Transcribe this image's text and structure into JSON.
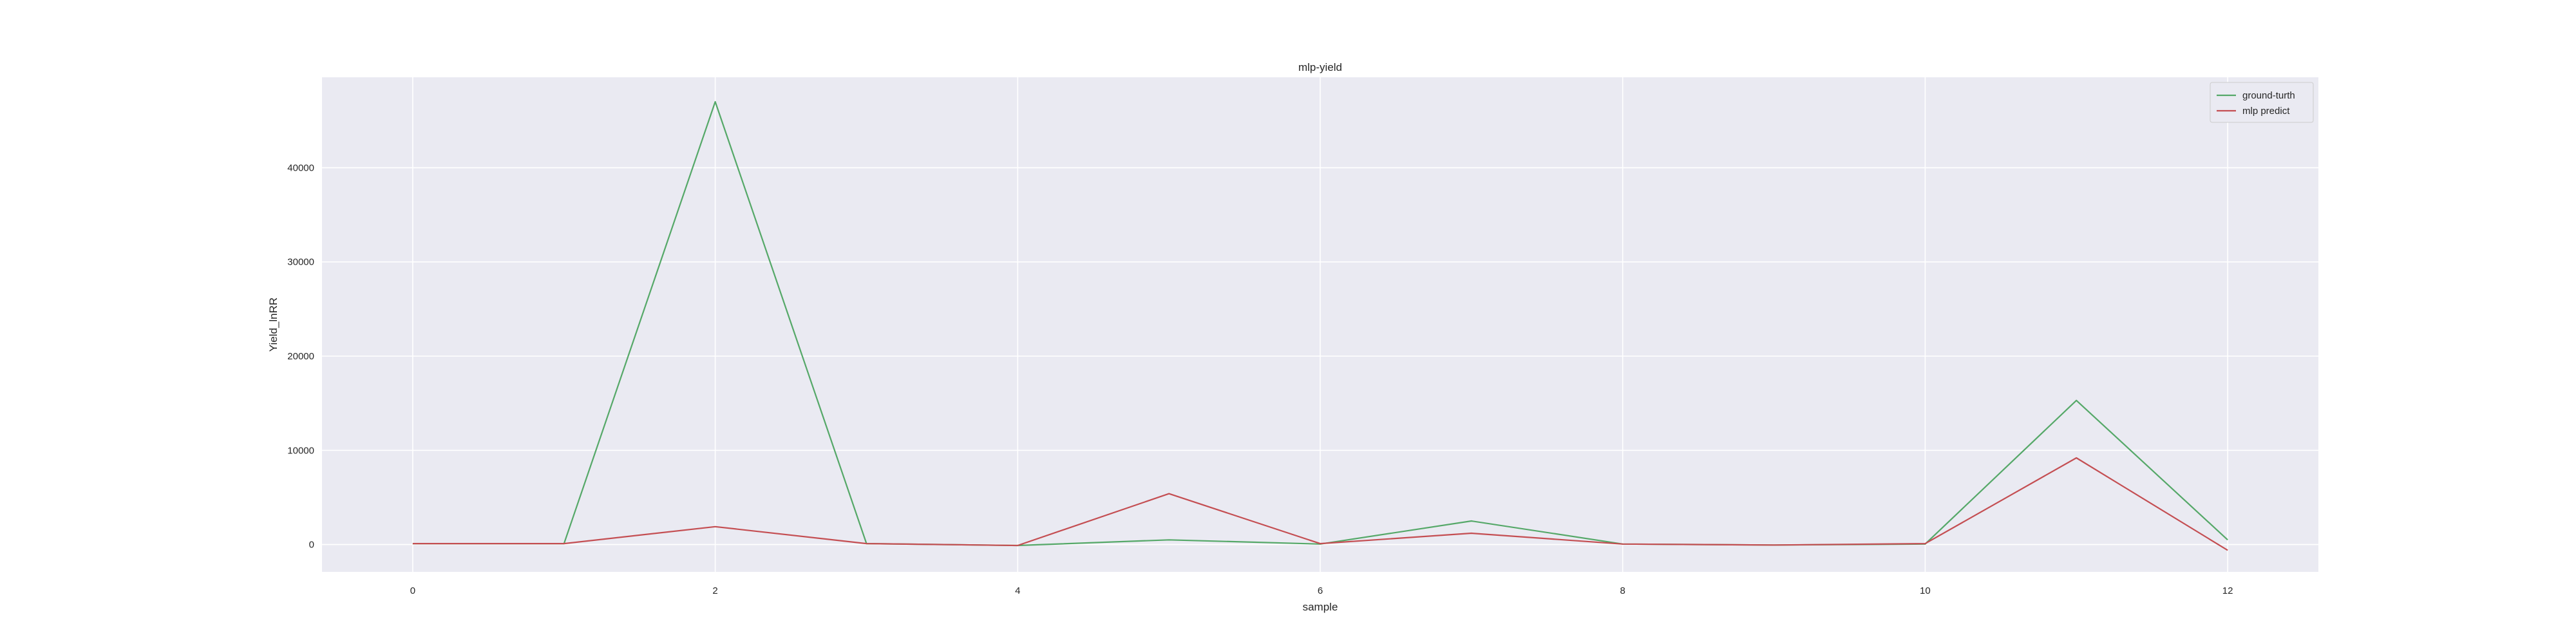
{
  "chart_data": {
    "type": "line",
    "title": "mlp-yield",
    "xlabel": "sample",
    "ylabel": "Yield_lnRR",
    "xlim": [
      -0.6,
      12.6
    ],
    "ylim": [
      -2900,
      49600
    ],
    "xticks": [
      0,
      2,
      4,
      6,
      8,
      10,
      12
    ],
    "yticks": [
      0,
      10000,
      20000,
      30000,
      40000
    ],
    "grid": true,
    "legend_position": "top-right",
    "x": [
      0,
      1,
      2,
      3,
      4,
      5,
      6,
      7,
      8,
      9,
      10,
      11,
      12
    ],
    "series": [
      {
        "name": "ground-turth",
        "color": "#55a868",
        "values": [
          100,
          100,
          47000,
          100,
          -100,
          500,
          50,
          2500,
          50,
          -50,
          50,
          15300,
          500
        ]
      },
      {
        "name": "mlp predict",
        "color": "#c44e52",
        "values": [
          100,
          100,
          1900,
          100,
          -100,
          5400,
          100,
          1200,
          50,
          -50,
          100,
          9200,
          -600
        ]
      }
    ]
  },
  "colors": {
    "plot_background": "#eaeaf2",
    "grid": "#ffffff",
    "text": "#262626"
  }
}
